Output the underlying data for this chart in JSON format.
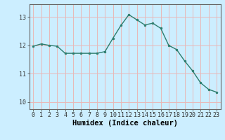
{
  "x": [
    0,
    1,
    2,
    3,
    4,
    5,
    6,
    7,
    8,
    9,
    10,
    11,
    12,
    13,
    14,
    15,
    16,
    17,
    18,
    19,
    20,
    21,
    22,
    23
  ],
  "y": [
    11.97,
    12.05,
    12.0,
    11.97,
    11.72,
    11.72,
    11.72,
    11.72,
    11.72,
    11.78,
    12.25,
    12.7,
    13.08,
    12.9,
    12.72,
    12.78,
    12.6,
    12.0,
    11.85,
    11.45,
    11.1,
    10.68,
    10.45,
    10.35
  ],
  "line_color": "#2d7d6e",
  "marker": "o",
  "marker_size": 2.0,
  "bg_color": "#cceeff",
  "grid_color": "#e8b8b8",
  "xlabel": "Humidex (Indice chaleur)",
  "ylim": [
    9.75,
    13.45
  ],
  "xlim": [
    -0.5,
    23.5
  ],
  "yticks": [
    10,
    11,
    12,
    13
  ],
  "xticks": [
    0,
    1,
    2,
    3,
    4,
    5,
    6,
    7,
    8,
    9,
    10,
    11,
    12,
    13,
    14,
    15,
    16,
    17,
    18,
    19,
    20,
    21,
    22,
    23
  ],
  "tick_fontsize": 6.0,
  "xlabel_fontsize": 7.5,
  "line_width": 1.0,
  "spine_color": "#666666"
}
